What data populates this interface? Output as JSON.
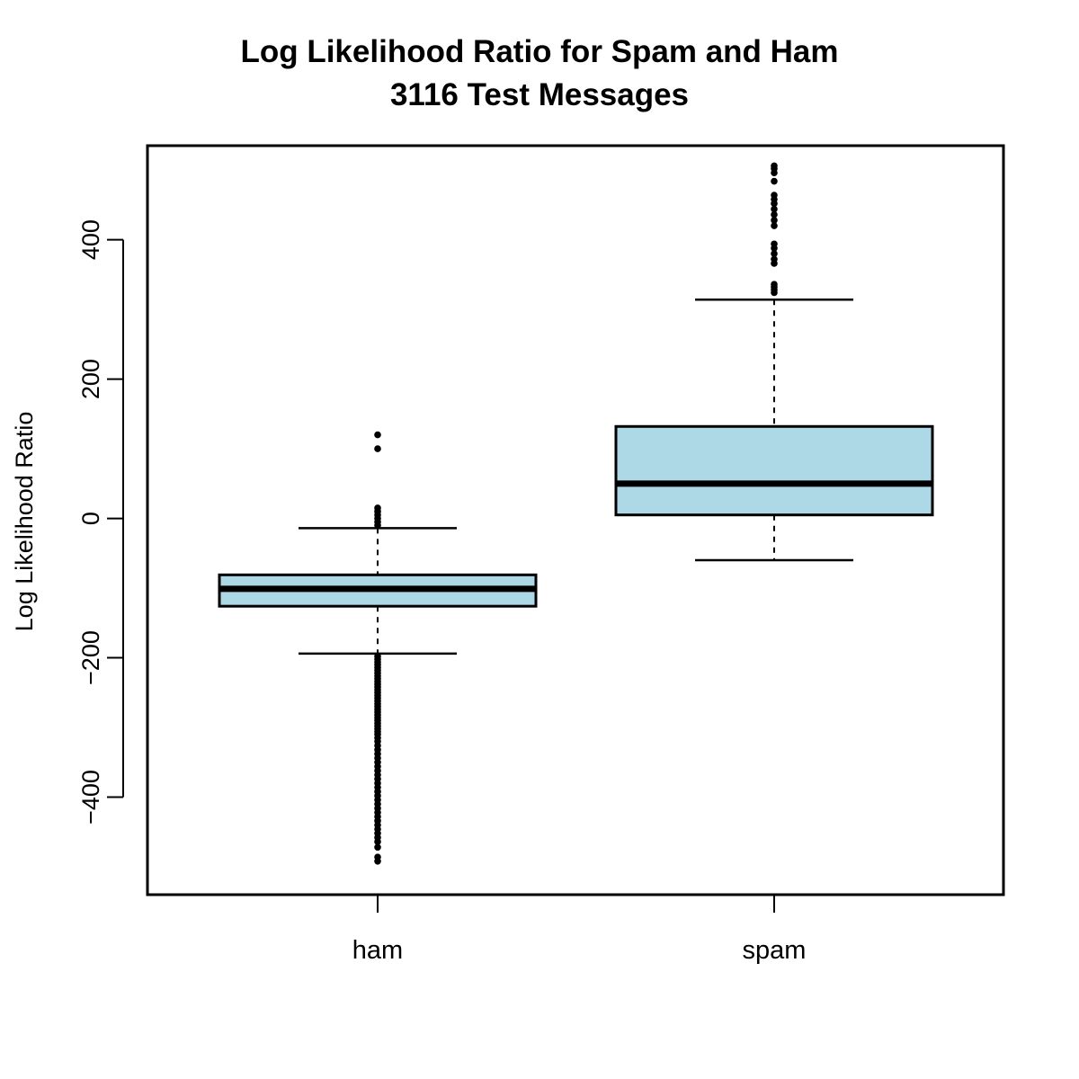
{
  "chart_data": {
    "type": "boxplot",
    "title": "Log Likelihood Ratio for Spam and Ham",
    "subtitle": "3116 Test Messages",
    "ylabel": "Log Likelihood Ratio",
    "xlabel": "",
    "ylim": [
      -540,
      535
    ],
    "yticks": [
      -400,
      -200,
      0,
      200,
      400
    ],
    "ytick_labels": [
      "−400",
      "−200",
      "0",
      "200",
      "400"
    ],
    "grid": false,
    "legend": "none",
    "box_color": "#add8e6",
    "categories": [
      "ham",
      "spam"
    ],
    "boxes": [
      {
        "category": "ham",
        "whisker_low": -194,
        "q1": -126,
        "median": -101,
        "q3": -81,
        "whisker_high": -14,
        "outliers_high": [
          -10,
          -5,
          0,
          5,
          10,
          15,
          100,
          120
        ],
        "outliers_low": [
          -198,
          -202,
          -206,
          -210,
          -214,
          -218,
          -222,
          -226,
          -230,
          -234,
          -238,
          -242,
          -246,
          -250,
          -254,
          -258,
          -262,
          -266,
          -270,
          -274,
          -278,
          -282,
          -286,
          -290,
          -294,
          -298,
          -302,
          -306,
          -310,
          -315,
          -320,
          -326,
          -332,
          -338,
          -344,
          -350,
          -356,
          -362,
          -368,
          -374,
          -380,
          -386,
          -392,
          -398,
          -404,
          -410,
          -416,
          -422,
          -428,
          -434,
          -440,
          -446,
          -452,
          -458,
          -464,
          -472,
          -486,
          -492
        ]
      },
      {
        "category": "spam",
        "whisker_low": -60,
        "q1": 5,
        "median": 50,
        "q3": 132,
        "whisker_high": 314,
        "outliers_high": [
          324,
          328,
          332,
          336,
          366,
          372,
          380,
          388,
          394,
          420,
          428,
          436,
          444,
          452,
          458,
          464,
          484,
          496,
          502,
          506
        ]
      }
    ]
  }
}
